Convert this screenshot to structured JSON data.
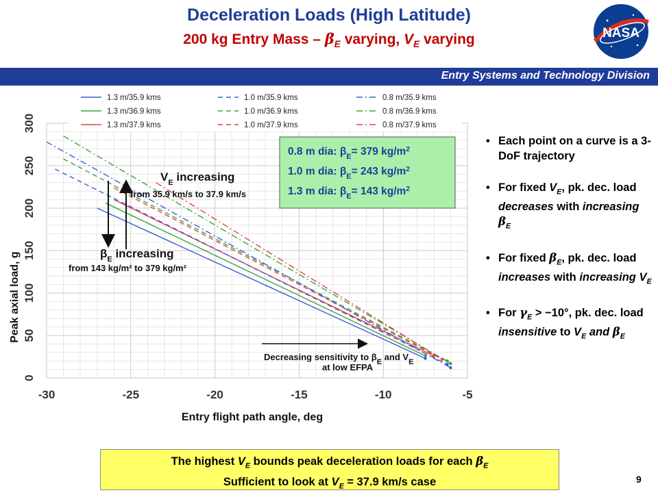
{
  "title": "Deceleration Loads (High Latitude)",
  "subtitle": "200 kg Entry Mass – βE varying, VE varying",
  "logo_text": "NASA",
  "banner": "Entry Systems and Technology Division",
  "page_number": "9",
  "bullets": [
    "Each point on a curve is a 3-DoF trajectory",
    "For fixed VE, pk. dec. load decreases with increasing βE",
    "For fixed βE, pk. dec. load increases with increasing VE",
    "For γE > −10°, pk. dec. load insensitive to VE and βE"
  ],
  "bottom_box": {
    "line1": "The highest VE bounds peak deceleration loads for each βE",
    "line2": "Sufficient to look at VE = 37.9 km/s case"
  },
  "colors": {
    "blue": "#3c5bd6",
    "green": "#3aa23a",
    "red": "#e2453b",
    "title": "#1f3c99",
    "subtitle": "#c00000"
  },
  "chart_data": {
    "type": "line",
    "xlabel": "Entry flight path angle, deg",
    "ylabel": "Peak axial load, g",
    "xlim": [
      -30,
      -5
    ],
    "ylim": [
      0,
      300
    ],
    "xticks": [
      "-30",
      "-25",
      "-20",
      "-15",
      "-10",
      "-5"
    ],
    "yticks": [
      "0",
      "50",
      "100",
      "150",
      "200",
      "250",
      "300"
    ],
    "legend_placement": "top",
    "beta_box": [
      {
        "label": "0.8 m dia: βE= 379 kg/m2"
      },
      {
        "label": "1.0 m dia: βE= 243 kg/m2"
      },
      {
        "label": "1.3 m dia: βE= 143 kg/m2"
      }
    ],
    "annotations": {
      "ve_title": "VE increasing",
      "ve_detail": "from 35.9 km/s to 37.9 km/s",
      "be_title": "βE increasing",
      "be_detail": "from 143 kg/m² to 379 kg/m²",
      "sens_line1": "Decreasing sensitivity to βE and VE",
      "sens_line2": "at low EFPA"
    },
    "series": [
      {
        "name": "1.3 m/35.9 kms",
        "color": "blue",
        "dash": "solid",
        "x": [
          -27,
          -7.5
        ],
        "y": [
          200,
          23
        ]
      },
      {
        "name": "1.3 m/36.9 kms",
        "color": "green",
        "dash": "solid",
        "x": [
          -26.5,
          -7.5
        ],
        "y": [
          206,
          26
        ]
      },
      {
        "name": "1.3 m/37.9 kms",
        "color": "red",
        "dash": "solid",
        "x": [
          -26,
          -7
        ],
        "y": [
          210,
          26
        ]
      },
      {
        "name": "1.0 m/35.9 kms",
        "color": "blue",
        "dash": "dash",
        "x": [
          -29.5,
          -6.2
        ],
        "y": [
          246,
          16
        ]
      },
      {
        "name": "1.0 m/36.9 kms",
        "color": "green",
        "dash": "dash",
        "x": [
          -29,
          -6.2
        ],
        "y": [
          258,
          20
        ]
      },
      {
        "name": "1.0 m/37.9 kms",
        "color": "red",
        "dash": "dash",
        "x": [
          -26,
          -6.5
        ],
        "y": [
          224,
          22
        ]
      },
      {
        "name": "0.8 m/35.9 kms",
        "color": "blue",
        "dash": "dashdot",
        "x": [
          -30,
          -6
        ],
        "y": [
          278,
          12
        ]
      },
      {
        "name": "0.8 m/36.9 kms",
        "color": "green",
        "dash": "dashdot",
        "x": [
          -29,
          -6
        ],
        "y": [
          285,
          17
        ]
      },
      {
        "name": "0.8 m/37.9 kms",
        "color": "red",
        "dash": "dashdot",
        "x": [
          -23.5,
          -6.5
        ],
        "y": [
          230,
          22
        ]
      }
    ]
  }
}
